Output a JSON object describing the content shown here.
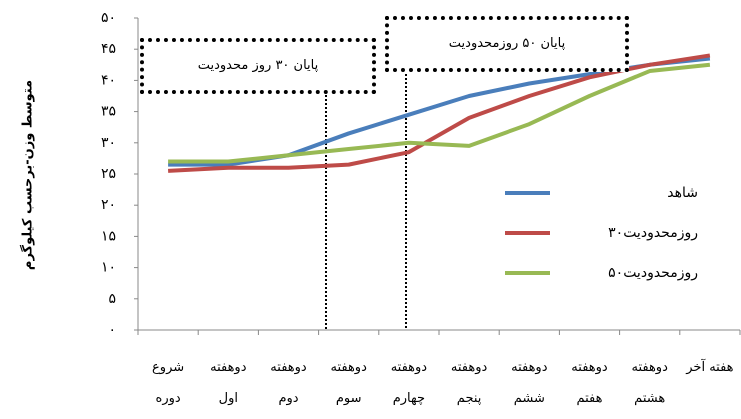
{
  "chart_data": {
    "type": "line",
    "y_label": "متوسط وزن-برحسب کیلوگرم",
    "categories": [
      "شروع دوره",
      "دوهفته اول",
      "دوهفته دوم",
      "دوهفته سوم",
      "دوهفته چهارم",
      "دوهفته پنجم",
      "دوهفته ششم",
      "دوهفته هفتم",
      "دوهفته هشتم",
      "هفته آخر"
    ],
    "series": [
      {
        "name": "شاهد",
        "color": "#4a7ebb",
        "values": [
          26.5,
          26.5,
          28,
          31.5,
          34.5,
          37.5,
          39.5,
          41,
          42.5,
          43.5
        ]
      },
      {
        "name": "۳۰روزمحدودیت",
        "color": "#be4b48",
        "values": [
          25.5,
          26,
          26,
          26.5,
          28.5,
          34,
          37.5,
          40.5,
          42.5,
          44
        ]
      },
      {
        "name": "۵۰روزمحدودیت",
        "color": "#98b954",
        "values": [
          27,
          27,
          28,
          29,
          30,
          29.5,
          33,
          37.5,
          41.5,
          42.5
        ]
      }
    ],
    "ylim": [
      0,
      50
    ],
    "yticks": [
      {
        "value": 0,
        "label": "۰"
      },
      {
        "value": 5,
        "label": "۵"
      },
      {
        "value": 10,
        "label": "۱۰"
      },
      {
        "value": 15,
        "label": "۱۵"
      },
      {
        "value": 20,
        "label": "۲۰"
      },
      {
        "value": 25,
        "label": "۲۵"
      },
      {
        "value": 30,
        "label": "۳۰"
      },
      {
        "value": 35,
        "label": "۳۵"
      },
      {
        "value": 40,
        "label": "۴۰"
      },
      {
        "value": 45,
        "label": "۴۵"
      },
      {
        "value": 50,
        "label": "۵۰"
      }
    ],
    "annotations": [
      "پایان ۳۰ روز محدودیت",
      "پایان ۵۰ روزمحدودیت"
    ],
    "grid": false
  }
}
